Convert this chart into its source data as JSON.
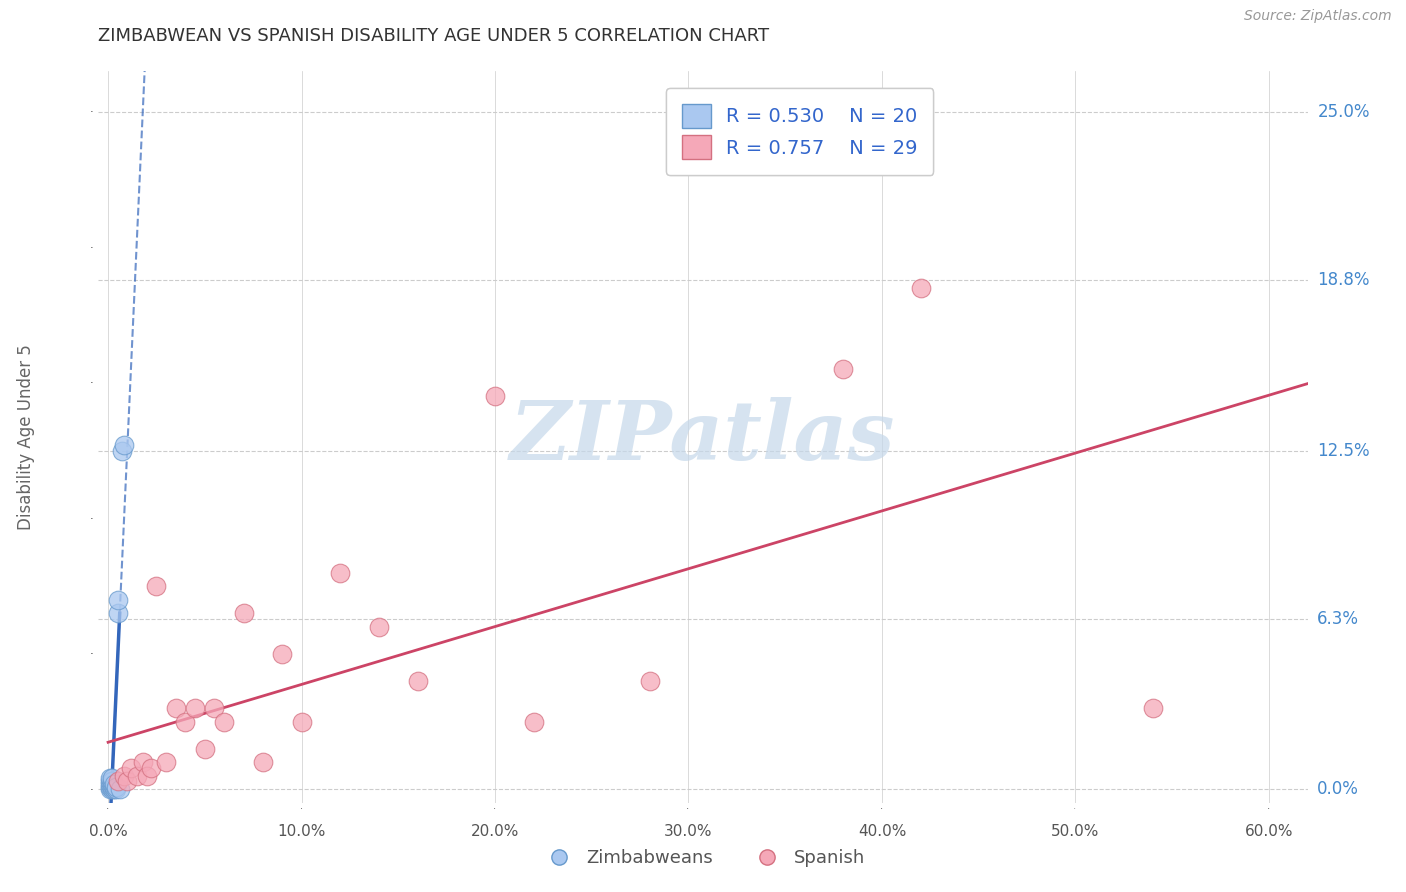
{
  "title": "ZIMBABWEAN VS SPANISH DISABILITY AGE UNDER 5 CORRELATION CHART",
  "source": "Source: ZipAtlas.com",
  "ylabel": "Disability Age Under 5",
  "xlim": [
    -0.005,
    0.62
  ],
  "ylim": [
    -0.005,
    0.265
  ],
  "yticks": [
    0.0,
    0.063,
    0.125,
    0.188,
    0.25
  ],
  "ytick_labels": [
    "0.0%",
    "6.3%",
    "12.5%",
    "18.8%",
    "25.0%"
  ],
  "xticks": [
    0.0,
    0.1,
    0.2,
    0.3,
    0.4,
    0.5,
    0.6
  ],
  "xtick_labels": [
    "0.0%",
    "10.0%",
    "20.0%",
    "30.0%",
    "40.0%",
    "50.0%",
    "60.0%"
  ],
  "blue_color": "#aac8f0",
  "blue_edge": "#6699cc",
  "pink_color": "#f5a8b8",
  "pink_edge": "#d47080",
  "trend_blue": "#3366bb",
  "trend_pink": "#cc4466",
  "watermark": "ZIPatlas",
  "watermark_color": "#c5d8ea",
  "legend_R_blue": "0.530",
  "legend_N_blue": "20",
  "legend_R_pink": "0.757",
  "legend_N_pink": "29",
  "legend_label_blue": "Zimbabweans",
  "legend_label_pink": "Spanish",
  "background_color": "#ffffff",
  "grid_color": "#cccccc",
  "ytick_color": "#4488cc",
  "title_color": "#333333",
  "source_color": "#999999",
  "blue_x": [
    0.001,
    0.001,
    0.001,
    0.001,
    0.001,
    0.002,
    0.002,
    0.002,
    0.002,
    0.002,
    0.003,
    0.003,
    0.003,
    0.004,
    0.004,
    0.005,
    0.005,
    0.006,
    0.007,
    0.008
  ],
  "blue_y": [
    0.0,
    0.001,
    0.002,
    0.003,
    0.004,
    0.0,
    0.001,
    0.002,
    0.003,
    0.004,
    0.0,
    0.001,
    0.002,
    0.0,
    0.001,
    0.065,
    0.07,
    0.0,
    0.125,
    0.127
  ],
  "pink_x": [
    0.005,
    0.008,
    0.01,
    0.012,
    0.015,
    0.018,
    0.02,
    0.022,
    0.025,
    0.03,
    0.035,
    0.04,
    0.045,
    0.05,
    0.055,
    0.06,
    0.07,
    0.08,
    0.09,
    0.1,
    0.12,
    0.14,
    0.16,
    0.2,
    0.22,
    0.28,
    0.38,
    0.42,
    0.54
  ],
  "pink_y": [
    0.003,
    0.005,
    0.003,
    0.008,
    0.005,
    0.01,
    0.005,
    0.008,
    0.075,
    0.01,
    0.03,
    0.025,
    0.03,
    0.015,
    0.03,
    0.025,
    0.065,
    0.01,
    0.05,
    0.025,
    0.08,
    0.06,
    0.04,
    0.145,
    0.025,
    0.04,
    0.155,
    0.185,
    0.03
  ]
}
